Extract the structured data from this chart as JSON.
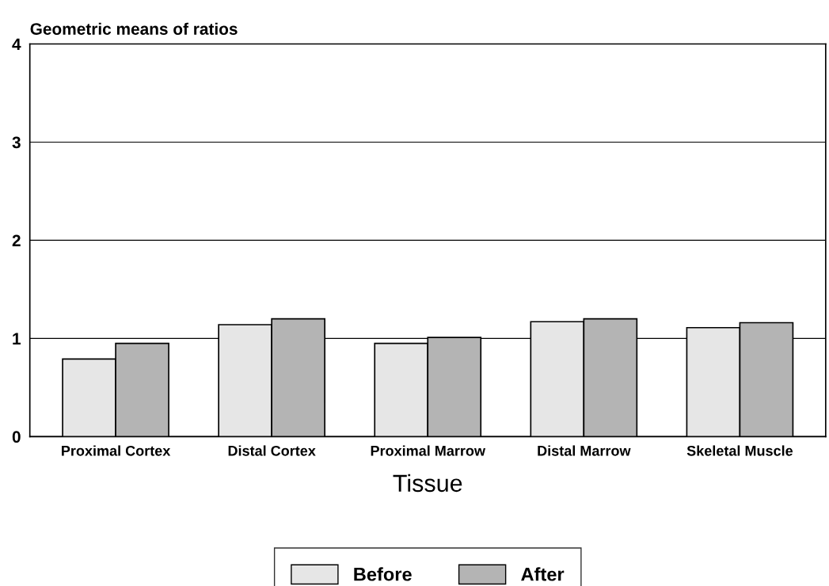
{
  "chart_data": {
    "type": "bar",
    "ylabel": "Geometric means of ratios",
    "xlabel": "Tissue",
    "categories": [
      "Proximal Cortex",
      "Distal Cortex",
      "Proximal Marrow",
      "Distal Marrow",
      "Skeletal Muscle"
    ],
    "series": [
      {
        "name": "Before",
        "color": "#e6e6e6",
        "values": [
          0.79,
          1.14,
          0.95,
          1.17,
          1.11
        ]
      },
      {
        "name": "After",
        "color": "#b4b4b4",
        "values": [
          0.95,
          1.2,
          1.01,
          1.2,
          1.16
        ]
      }
    ],
    "ylim": [
      0,
      4
    ],
    "yticks": [
      0,
      1,
      2,
      3,
      4
    ],
    "grid": "y",
    "legend": "bottom"
  }
}
